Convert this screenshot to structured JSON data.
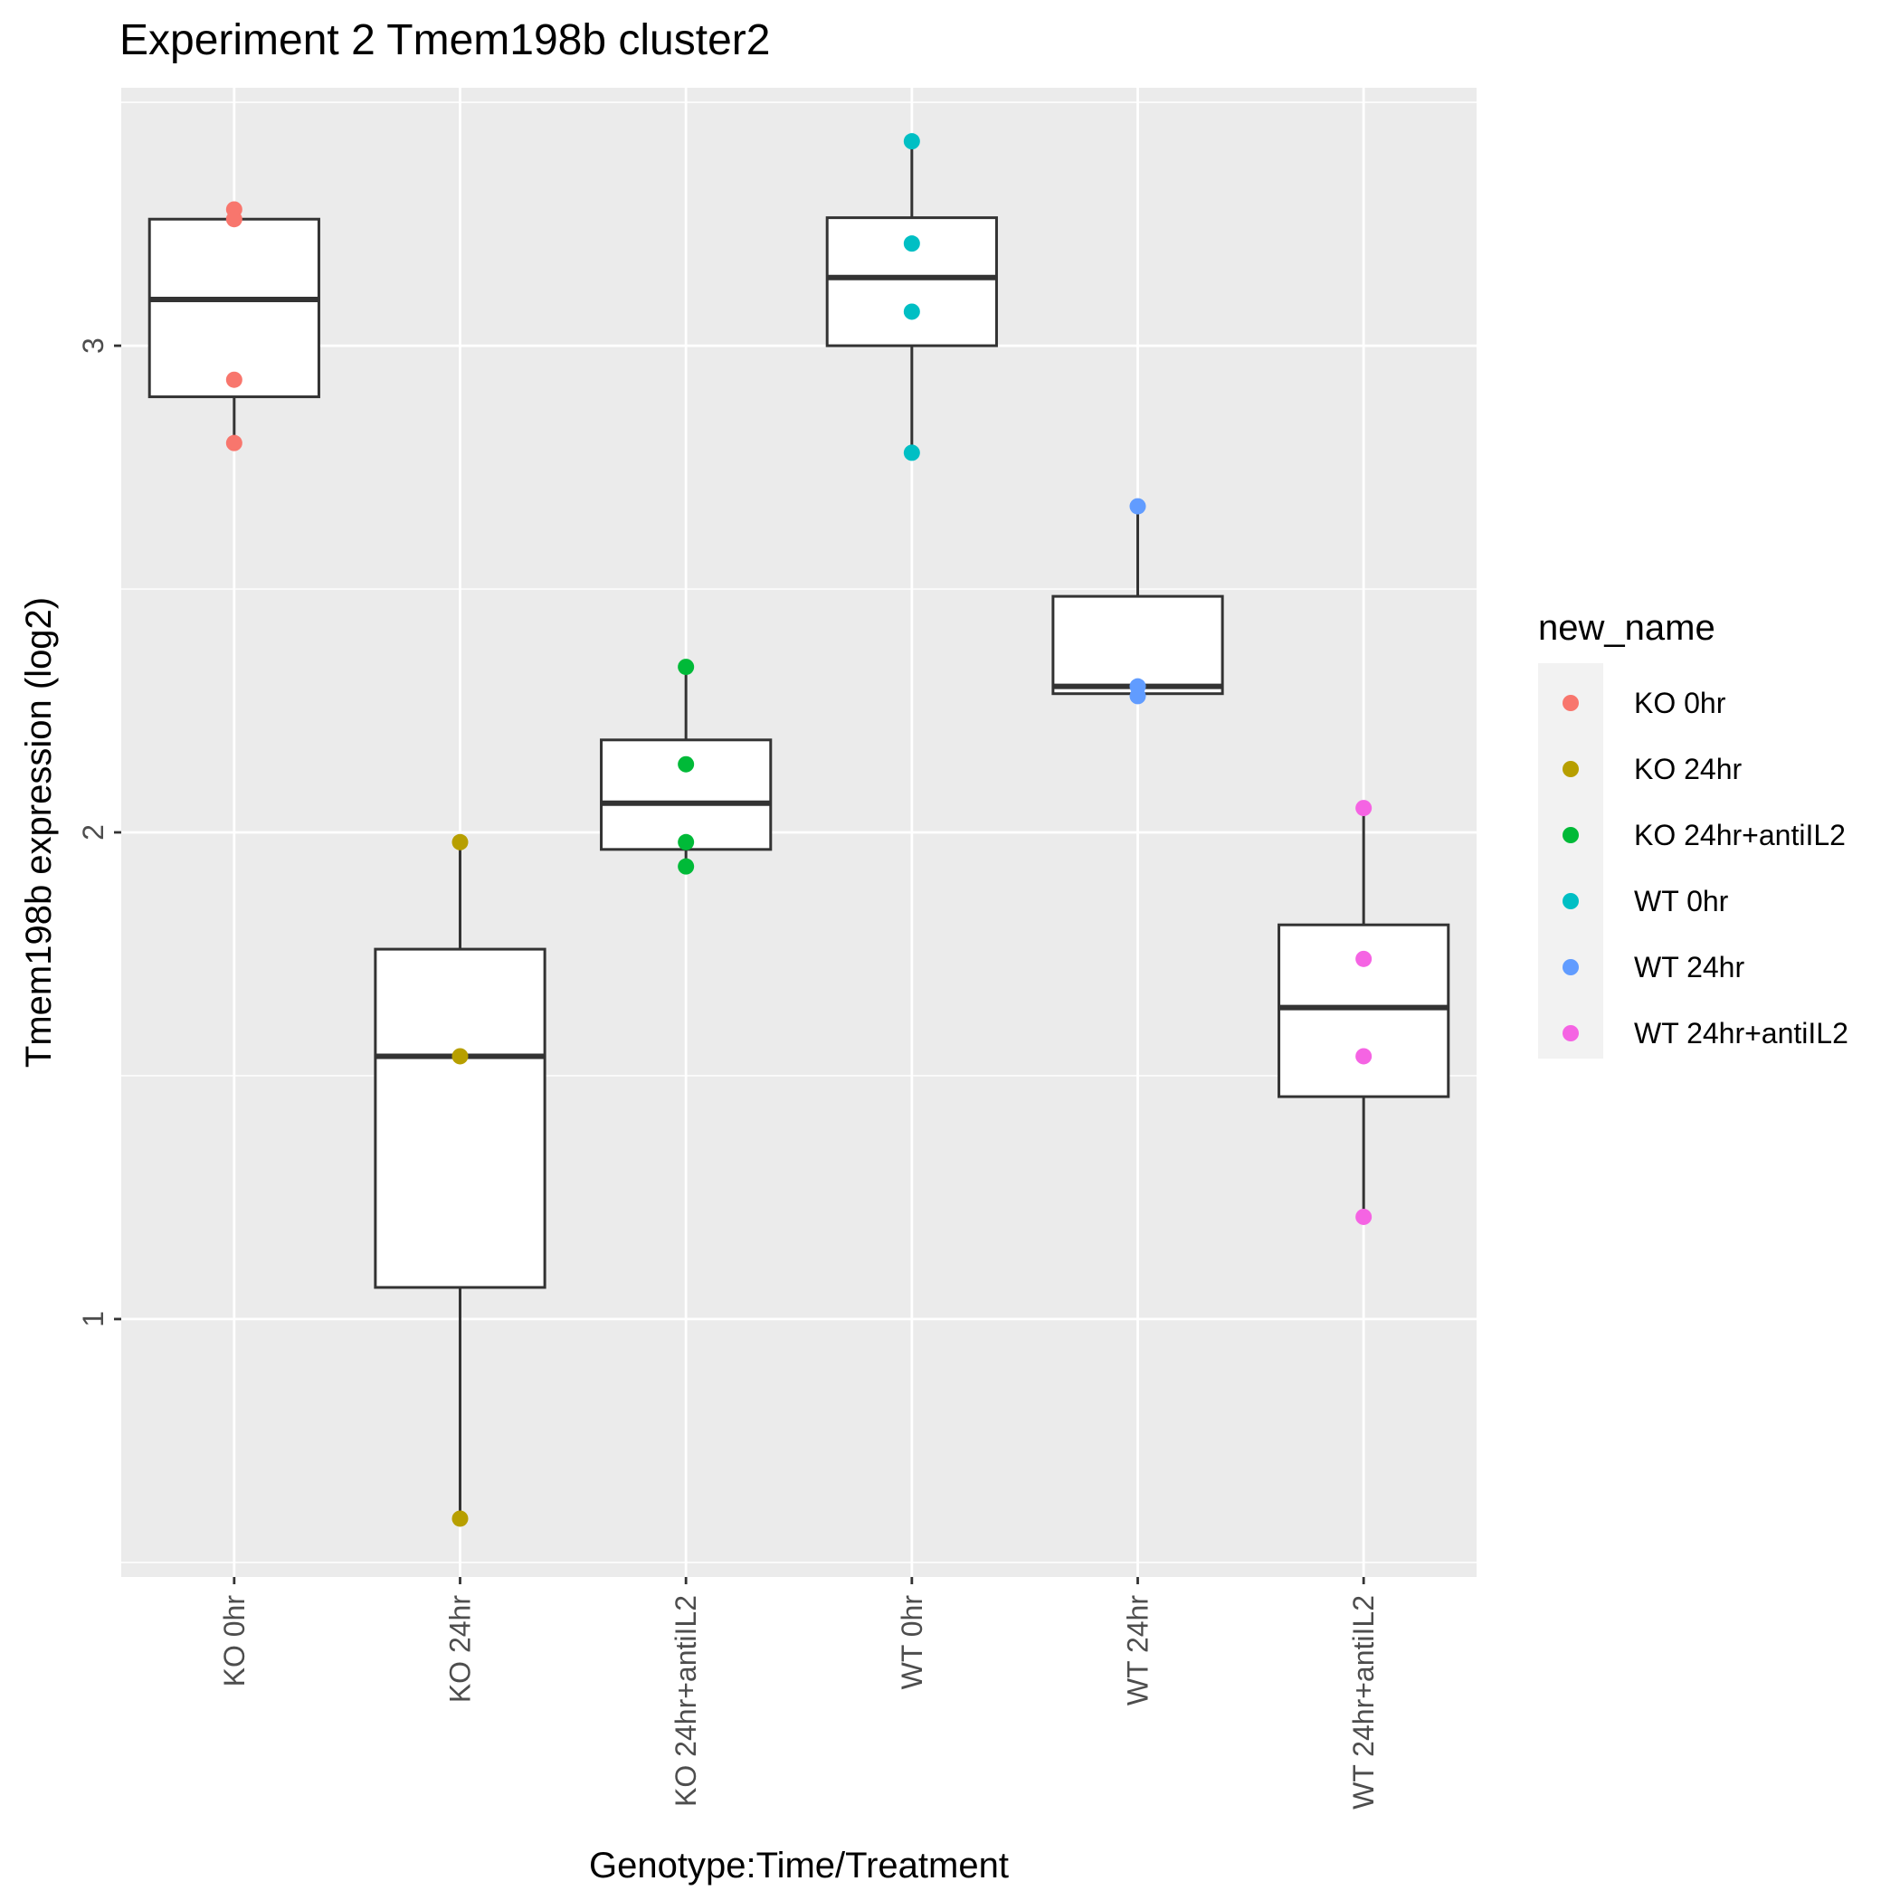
{
  "chart_data": {
    "type": "boxplot",
    "title": "Experiment 2 Tmem198b cluster2",
    "xlabel": "Genotype:Time/Treatment",
    "ylabel": "Tmem198b expression (log2)",
    "ylim": [
      0.47,
      3.53
    ],
    "yticks": [
      1,
      2,
      3
    ],
    "ytick_labels": [
      "1",
      "2",
      "3"
    ],
    "grid": true,
    "legend": {
      "title": "new_name",
      "position": "right"
    },
    "categories": [
      "KO 0hr",
      "KO 24hr",
      "KO 24hr+antiIL2",
      "WT 0hr",
      "WT 24hr",
      "WT 24hr+antiIL2"
    ],
    "series": [
      {
        "name": "KO 0hr",
        "color": "#F8766D",
        "points": [
          3.28,
          3.26,
          2.93,
          2.8
        ],
        "box": {
          "whisker_low": 2.8,
          "q1": 2.895,
          "median": 3.095,
          "q3": 3.26,
          "whisker_high": 3.28
        }
      },
      {
        "name": "KO 24hr",
        "color": "#B79F00",
        "points": [
          1.98,
          1.54,
          0.59
        ],
        "box": {
          "whisker_low": 0.59,
          "q1": 1.065,
          "median": 1.54,
          "q3": 1.76,
          "whisker_high": 1.98
        }
      },
      {
        "name": "KO 24hr+antiIL2",
        "color": "#00BA38",
        "points": [
          2.34,
          2.14,
          1.98,
          1.93
        ],
        "box": {
          "whisker_low": 1.93,
          "q1": 1.965,
          "median": 2.06,
          "q3": 2.19,
          "whisker_high": 2.34
        }
      },
      {
        "name": "WT 0hr",
        "color": "#00BFC4",
        "points": [
          3.42,
          3.21,
          3.07,
          2.78
        ],
        "box": {
          "whisker_low": 2.78,
          "q1": 3.0,
          "median": 3.14,
          "q3": 3.263,
          "whisker_high": 3.42
        }
      },
      {
        "name": "WT 24hr",
        "color": "#619CFF",
        "points": [
          2.67,
          2.3,
          2.28
        ],
        "box": {
          "whisker_low": 2.28,
          "q1": 2.285,
          "median": 2.3,
          "q3": 2.485,
          "whisker_high": 2.67
        }
      },
      {
        "name": "WT 24hr+antiIL2",
        "color": "#F564E3",
        "points": [
          2.05,
          1.74,
          1.54,
          1.21
        ],
        "box": {
          "whisker_low": 1.21,
          "q1": 1.457,
          "median": 1.64,
          "q3": 1.81,
          "whisker_high": 2.05
        }
      }
    ]
  }
}
